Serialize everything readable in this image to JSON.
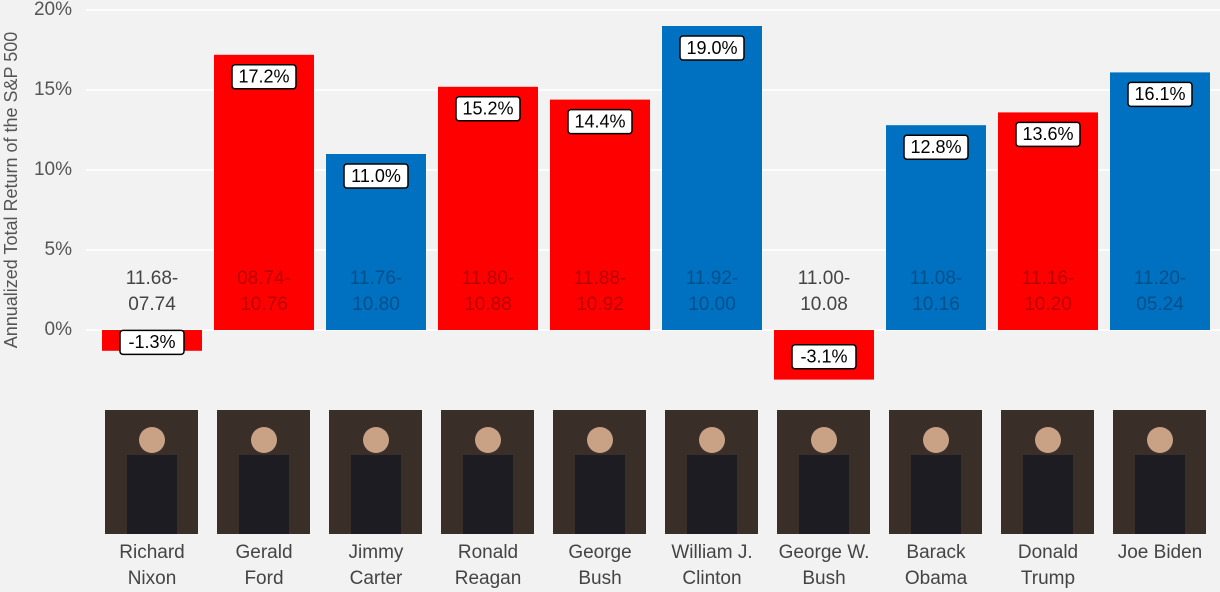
{
  "chart_data": {
    "type": "bar",
    "y_label": "Annualized Total Return of the S&P 500",
    "categories": [
      "Richard\nNixon",
      "Gerald\nFord",
      "Jimmy\nCarter",
      "Ronald\nReagan",
      "George\nBush",
      "William J.\nClinton",
      "George W.\nBush",
      "Barack\nObama",
      "Donald\nTrump",
      "Joe Biden"
    ],
    "periods": [
      "11.68-\n07.74",
      "08.74-\n10.76",
      "11.76-\n10.80",
      "11.80-\n10.88",
      "11.88-\n10.92",
      "11.92-\n10.00",
      "11.00-\n10.08",
      "11.08-\n10.16",
      "11.16-\n10.20",
      "11.20-\n05.24"
    ],
    "values": [
      -1.3,
      17.2,
      11.0,
      15.2,
      14.4,
      19.0,
      -3.1,
      12.8,
      13.6,
      16.1
    ],
    "value_labels": [
      "-1.3%",
      "17.2%",
      "11.0%",
      "15.2%",
      "14.4%",
      "19.0%",
      "-3.1%",
      "12.8%",
      "13.6%",
      "16.1%"
    ],
    "colors": [
      "#ff0000",
      "#ff0000",
      "#0070c0",
      "#ff0000",
      "#ff0000",
      "#0070c0",
      "#ff0000",
      "#0070c0",
      "#ff0000",
      "#0070c0"
    ],
    "ylim": [
      -4,
      20
    ],
    "yticks": [
      {
        "value": 0,
        "label": "0%"
      },
      {
        "value": 5,
        "label": "5%"
      },
      {
        "value": 10,
        "label": "10%"
      },
      {
        "value": 15,
        "label": "15%"
      },
      {
        "value": 20,
        "label": "20%"
      }
    ],
    "grid": true
  }
}
